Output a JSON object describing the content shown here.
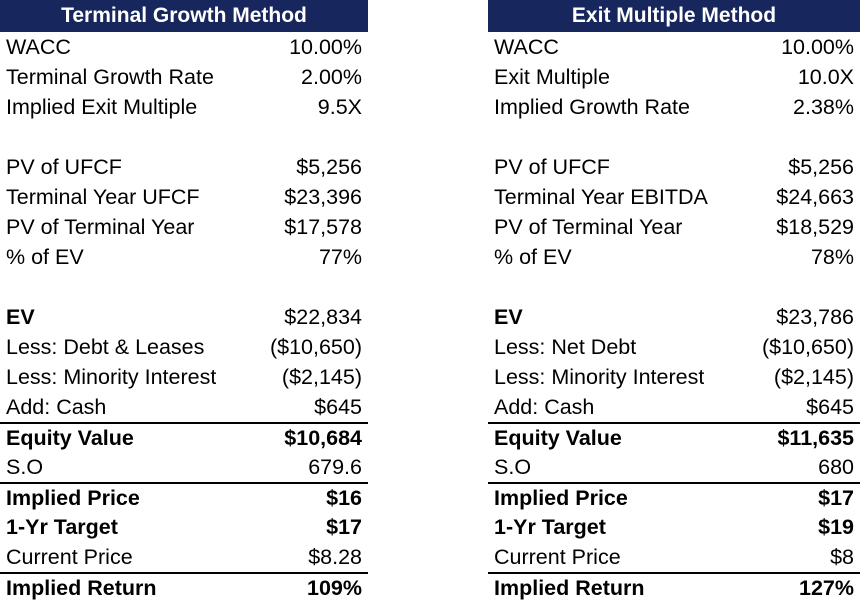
{
  "left": {
    "title": "Terminal Growth Method",
    "rows": [
      {
        "label": "WACC",
        "value": "10.00%"
      },
      {
        "label": "Terminal Growth Rate",
        "value": "2.00%"
      },
      {
        "label": "Implied Exit Multiple",
        "value": "9.5X"
      },
      {
        "label": "PV of UFCF",
        "value": "$5,256"
      },
      {
        "label": "Terminal Year UFCF",
        "value": "$23,396"
      },
      {
        "label": "PV of Terminal Year",
        "value": "$17,578"
      },
      {
        "label": "% of EV",
        "value": "77%"
      },
      {
        "label": "EV",
        "value": "$22,834"
      },
      {
        "label": "Less: Debt & Leases",
        "value": "($10,650)"
      },
      {
        "label": "Less: Minority Interest",
        "value": "($2,145)"
      },
      {
        "label": "Add: Cash",
        "value": "$645"
      },
      {
        "label": "Equity Value",
        "value": "$10,684"
      },
      {
        "label": "S.O",
        "value": "679.6"
      },
      {
        "label": "Implied Price",
        "value": "$16"
      },
      {
        "label": "1-Yr Target",
        "value": "$17"
      },
      {
        "label": "Current Price",
        "value": "$8.28"
      },
      {
        "label": "Implied Return",
        "value": "109%"
      }
    ]
  },
  "right": {
    "title": "Exit Multiple Method",
    "rows": [
      {
        "label": "WACC",
        "value": "10.00%"
      },
      {
        "label": "Exit Multiple",
        "value": "10.0X"
      },
      {
        "label": "Implied Growth Rate",
        "value": "2.38%"
      },
      {
        "label": "PV of UFCF",
        "value": "$5,256"
      },
      {
        "label": "Terminal Year EBITDA",
        "value": "$24,663"
      },
      {
        "label": "PV of Terminal Year",
        "value": "$18,529"
      },
      {
        "label": "% of EV",
        "value": "78%"
      },
      {
        "label": "EV",
        "value": "$23,786"
      },
      {
        "label": "Less: Net Debt",
        "value": "($10,650)"
      },
      {
        "label": "Less: Minority Interest",
        "value": "($2,145)"
      },
      {
        "label": "Add: Cash",
        "value": "$645"
      },
      {
        "label": "Equity Value",
        "value": "$11,635"
      },
      {
        "label": "S.O",
        "value": "680"
      },
      {
        "label": "Implied Price",
        "value": "$17"
      },
      {
        "label": "1-Yr Target",
        "value": "$19"
      },
      {
        "label": "Current Price",
        "value": "$8"
      },
      {
        "label": "Implied Return",
        "value": "127%"
      }
    ]
  },
  "colors": {
    "header_bg": "#17275e",
    "header_text": "#ffffff"
  }
}
